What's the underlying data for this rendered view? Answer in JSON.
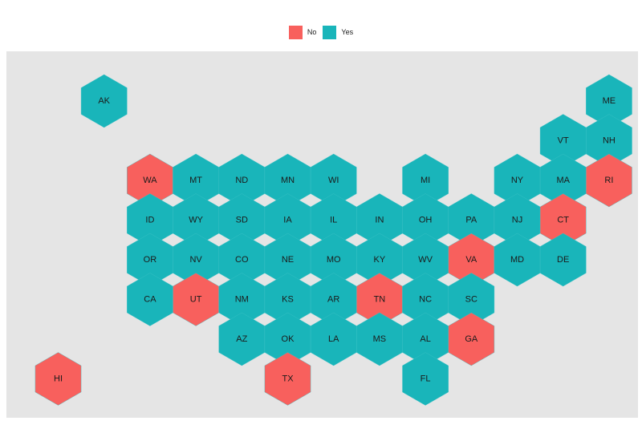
{
  "chart_data": {
    "type": "hexbin-map",
    "legend": {
      "position": "top",
      "items": [
        {
          "label": "No",
          "color": "#f8605d"
        },
        {
          "label": "Yes",
          "color": "#19b5ba"
        }
      ]
    },
    "states": [
      {
        "abbr": "AK",
        "value": "Yes",
        "col": 1,
        "row": 0
      },
      {
        "abbr": "ME",
        "value": "Yes",
        "col": 12,
        "row": 0
      },
      {
        "abbr": "VT",
        "value": "Yes",
        "col": 11,
        "row": 1
      },
      {
        "abbr": "NH",
        "value": "Yes",
        "col": 12,
        "row": 1
      },
      {
        "abbr": "WA",
        "value": "No",
        "col": 2,
        "row": 2
      },
      {
        "abbr": "MT",
        "value": "Yes",
        "col": 3,
        "row": 2
      },
      {
        "abbr": "ND",
        "value": "Yes",
        "col": 4,
        "row": 2
      },
      {
        "abbr": "MN",
        "value": "Yes",
        "col": 5,
        "row": 2
      },
      {
        "abbr": "WI",
        "value": "Yes",
        "col": 6,
        "row": 2
      },
      {
        "abbr": "MI",
        "value": "Yes",
        "col": 8,
        "row": 2
      },
      {
        "abbr": "NY",
        "value": "Yes",
        "col": 10,
        "row": 2
      },
      {
        "abbr": "MA",
        "value": "Yes",
        "col": 11,
        "row": 2
      },
      {
        "abbr": "RI",
        "value": "No",
        "col": 12,
        "row": 2
      },
      {
        "abbr": "ID",
        "value": "Yes",
        "col": 2,
        "row": 3
      },
      {
        "abbr": "WY",
        "value": "Yes",
        "col": 3,
        "row": 3
      },
      {
        "abbr": "SD",
        "value": "Yes",
        "col": 4,
        "row": 3
      },
      {
        "abbr": "IA",
        "value": "Yes",
        "col": 5,
        "row": 3
      },
      {
        "abbr": "IL",
        "value": "Yes",
        "col": 6,
        "row": 3
      },
      {
        "abbr": "IN",
        "value": "Yes",
        "col": 7,
        "row": 3
      },
      {
        "abbr": "OH",
        "value": "Yes",
        "col": 8,
        "row": 3
      },
      {
        "abbr": "PA",
        "value": "Yes",
        "col": 9,
        "row": 3
      },
      {
        "abbr": "NJ",
        "value": "Yes",
        "col": 10,
        "row": 3
      },
      {
        "abbr": "CT",
        "value": "No",
        "col": 11,
        "row": 3
      },
      {
        "abbr": "OR",
        "value": "Yes",
        "col": 2,
        "row": 4
      },
      {
        "abbr": "NV",
        "value": "Yes",
        "col": 3,
        "row": 4
      },
      {
        "abbr": "CO",
        "value": "Yes",
        "col": 4,
        "row": 4
      },
      {
        "abbr": "NE",
        "value": "Yes",
        "col": 5,
        "row": 4
      },
      {
        "abbr": "MO",
        "value": "Yes",
        "col": 6,
        "row": 4
      },
      {
        "abbr": "KY",
        "value": "Yes",
        "col": 7,
        "row": 4
      },
      {
        "abbr": "WV",
        "value": "Yes",
        "col": 8,
        "row": 4
      },
      {
        "abbr": "VA",
        "value": "No",
        "col": 9,
        "row": 4
      },
      {
        "abbr": "MD",
        "value": "Yes",
        "col": 10,
        "row": 4
      },
      {
        "abbr": "DE",
        "value": "Yes",
        "col": 11,
        "row": 4
      },
      {
        "abbr": "CA",
        "value": "Yes",
        "col": 2,
        "row": 5
      },
      {
        "abbr": "UT",
        "value": "No",
        "col": 3,
        "row": 5
      },
      {
        "abbr": "NM",
        "value": "Yes",
        "col": 4,
        "row": 5
      },
      {
        "abbr": "KS",
        "value": "Yes",
        "col": 5,
        "row": 5
      },
      {
        "abbr": "AR",
        "value": "Yes",
        "col": 6,
        "row": 5
      },
      {
        "abbr": "TN",
        "value": "No",
        "col": 7,
        "row": 5
      },
      {
        "abbr": "NC",
        "value": "Yes",
        "col": 8,
        "row": 5
      },
      {
        "abbr": "SC",
        "value": "Yes",
        "col": 9,
        "row": 5
      },
      {
        "abbr": "AZ",
        "value": "Yes",
        "col": 4,
        "row": 6
      },
      {
        "abbr": "OK",
        "value": "Yes",
        "col": 5,
        "row": 6
      },
      {
        "abbr": "LA",
        "value": "Yes",
        "col": 6,
        "row": 6
      },
      {
        "abbr": "MS",
        "value": "Yes",
        "col": 7,
        "row": 6
      },
      {
        "abbr": "AL",
        "value": "Yes",
        "col": 8,
        "row": 6
      },
      {
        "abbr": "GA",
        "value": "No",
        "col": 9,
        "row": 6
      },
      {
        "abbr": "HI",
        "value": "No",
        "col": 0,
        "row": 7
      },
      {
        "abbr": "TX",
        "value": "No",
        "col": 5,
        "row": 7
      },
      {
        "abbr": "FL",
        "value": "Yes",
        "col": 8,
        "row": 7
      }
    ]
  }
}
